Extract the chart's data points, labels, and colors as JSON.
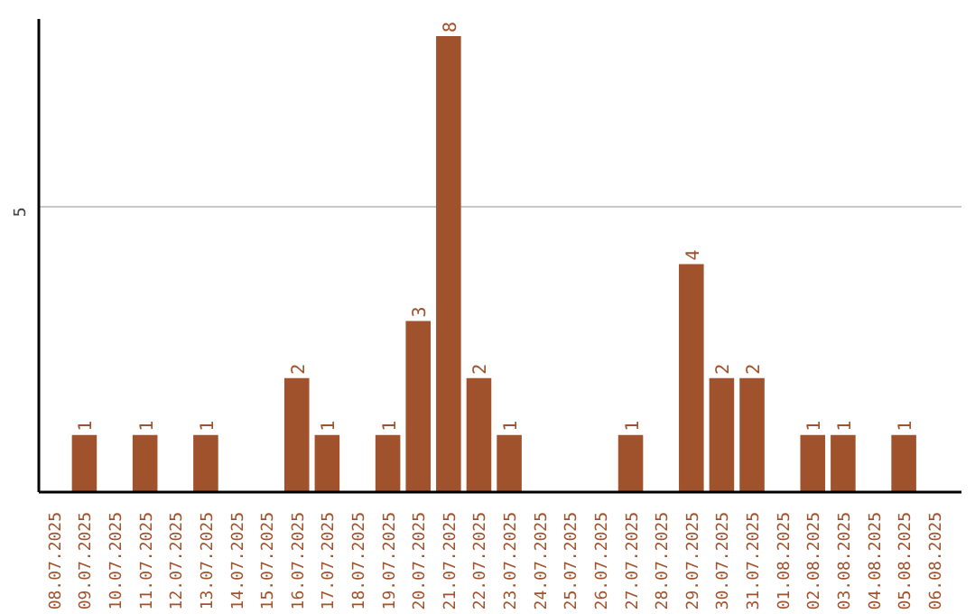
{
  "chart_data": {
    "type": "bar",
    "categories": [
      "08.07.2025",
      "09.07.2025",
      "10.07.2025",
      "11.07.2025",
      "12.07.2025",
      "13.07.2025",
      "14.07.2025",
      "15.07.2025",
      "16.07.2025",
      "17.07.2025",
      "18.07.2025",
      "19.07.2025",
      "20.07.2025",
      "21.07.2025",
      "22.07.2025",
      "23.07.2025",
      "24.07.2025",
      "25.07.2025",
      "26.07.2025",
      "27.07.2025",
      "28.07.2025",
      "29.07.2025",
      "30.07.2025",
      "31.07.2025",
      "01.08.2025",
      "02.08.2025",
      "03.08.2025",
      "04.08.2025",
      "05.08.2025",
      "06.08.2025"
    ],
    "values": [
      null,
      1,
      null,
      1,
      null,
      1,
      null,
      null,
      2,
      1,
      null,
      1,
      3,
      8,
      2,
      1,
      null,
      null,
      null,
      1,
      null,
      4,
      2,
      2,
      null,
      1,
      1,
      null,
      1,
      null
    ],
    "color": "#a0522d",
    "ylim": [
      0,
      8.3
    ],
    "yticks": [
      5
    ],
    "grid": "y",
    "data_labels": true
  }
}
